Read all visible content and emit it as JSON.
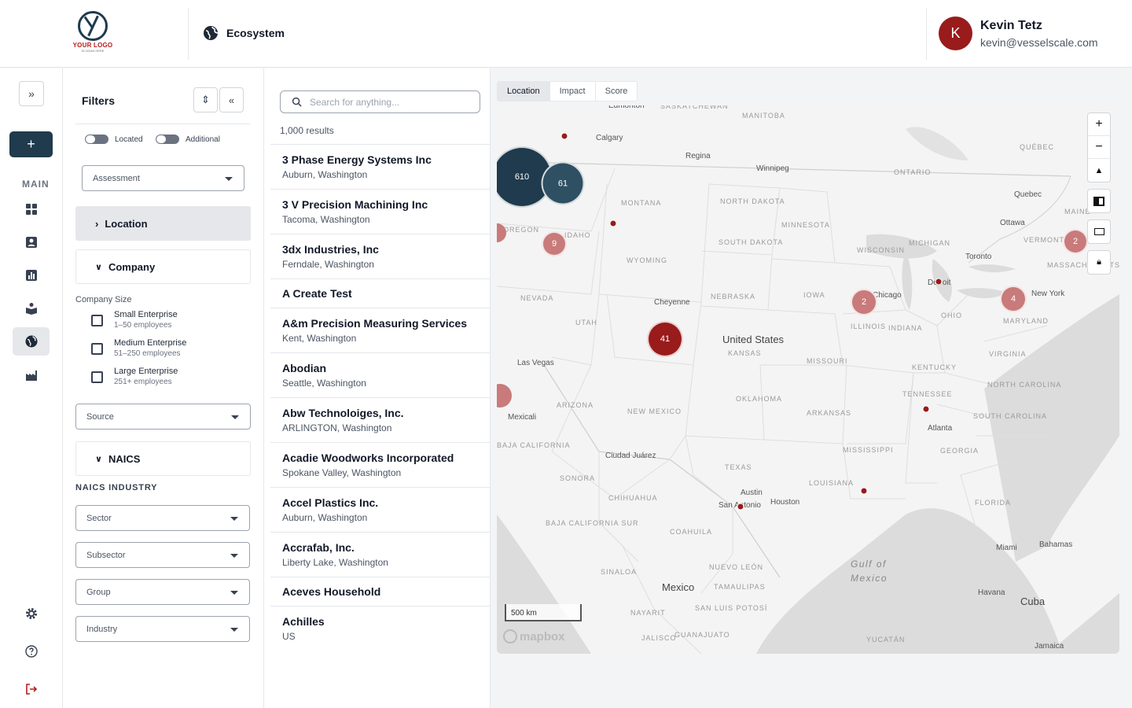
{
  "header": {
    "logo_text": "YOUR LOGO",
    "logo_sub": "SLOGAN HERE",
    "section_title": "Ecosystem",
    "user": {
      "initial": "K",
      "name": "Kevin Tetz",
      "email": "kevin@vesselscale.com"
    }
  },
  "rail": {
    "main_label": "MAIN"
  },
  "filters": {
    "title": "Filters",
    "toggles": [
      {
        "label": "Located"
      },
      {
        "label": "Additional"
      }
    ],
    "assessment": "Assessment",
    "location_section": "Location",
    "company_section": "Company",
    "company_size_label": "Company Size",
    "sizes": [
      {
        "name": "Small Enterprise",
        "range": "1–50 employees"
      },
      {
        "name": "Medium Enterprise",
        "range": "51–250 employees"
      },
      {
        "name": "Large Enterprise",
        "range": "251+ employees"
      }
    ],
    "source": "Source",
    "naics_section": "NAICS",
    "naics_industry_label": "NAICS INDUSTRY",
    "naics_selects": [
      "Sector",
      "Subsector",
      "Group",
      "Industry"
    ]
  },
  "results": {
    "search_placeholder": "Search for anything...",
    "count": "1,000 results",
    "items": [
      {
        "name": "3 Phase Energy Systems Inc",
        "location": "Auburn, Washington"
      },
      {
        "name": "3 V Precision Machining Inc",
        "location": "Tacoma, Washington"
      },
      {
        "name": "3dx Industries, Inc",
        "location": "Ferndale, Washington"
      },
      {
        "name": "A Create Test",
        "location": ""
      },
      {
        "name": "A&m Precision Measuring Services",
        "location": "Kent, Washington"
      },
      {
        "name": "Abodian",
        "location": "Seattle, Washington"
      },
      {
        "name": "Abw Technoloiges, Inc.",
        "location": "ARLINGTON, Washington"
      },
      {
        "name": "Acadie Woodworks Incorporated",
        "location": "Spokane Valley, Washington"
      },
      {
        "name": "Accel Plastics Inc.",
        "location": "Auburn, Washington"
      },
      {
        "name": "Accrafab, Inc.",
        "location": "Liberty Lake, Washington"
      },
      {
        "name": "Aceves Household",
        "location": ""
      },
      {
        "name": "Achilles",
        "location": "US"
      }
    ]
  },
  "map": {
    "tabs": [
      "Location",
      "Impact",
      "Score"
    ],
    "active_tab": "Location",
    "scale": "500 km",
    "attribution": "mapbox",
    "clusters": [
      {
        "count": "610",
        "color": "#1f3b4d"
      },
      {
        "count": "61",
        "color": "#2f4f63"
      },
      {
        "count": "41",
        "color": "#991b1b"
      },
      {
        "count": "9",
        "color": "#c97a7a"
      },
      {
        "count": "2",
        "color": "#c97a7a"
      },
      {
        "count": "4",
        "color": "#c97a7a"
      },
      {
        "count": "2",
        "color": "#c97a7a"
      }
    ],
    "labels": {
      "calgary": "Calgary",
      "regina": "Regina",
      "winnipeg": "Winnipeg",
      "quebec": "Quebec",
      "ottawa": "Ottawa",
      "toronto": "Toronto",
      "detroit": "Detroit",
      "chicago": "Chicago",
      "newyork": "New York",
      "cheyenne": "Cheyenne",
      "lasvegas": "Las Vegas",
      "mexicali": "Mexicali",
      "ciudad": "Ciudad Juárez",
      "austin": "Austin",
      "sanantonio": "San Antonio",
      "houston": "Houston",
      "atlanta": "Atlanta",
      "miami": "Miami",
      "havana": "Havana",
      "mexico": "Mexico",
      "cuba": "Cuba",
      "us": "United States",
      "gulf1": "Gulf of",
      "gulf2": "Mexico",
      "bahamas": "Bahamas",
      "jamaica": "Jamaica",
      "montana": "MONTANA",
      "ndakota": "NORTH DAKOTA",
      "sdakota": "SOUTH DAKOTA",
      "minnesota": "MINNESOTA",
      "wisconsin": "WISCONSIN",
      "michigan": "MICHIGAN",
      "oregon": "OREGON",
      "idaho": "IDAHO",
      "wyoming": "WYOMING",
      "nevada": "NEVADA",
      "utah": "UTAH",
      "nebraska": "NEBRASKA",
      "iowa": "IOWA",
      "illinois": "ILLINOIS",
      "indiana": "INDIANA",
      "ohio": "OHIO",
      "kansas": "KANSAS",
      "missouri": "MISSOURI",
      "kentucky": "KENTUCKY",
      "virginia": "VIRGINIA",
      "ncarolina": "NORTH CAROLINA",
      "tennessee": "TENNESSEE",
      "scarolina": "SOUTH CAROLINA",
      "arizona": "ARIZONA",
      "newmexico": "NEW MEXICO",
      "oklahoma": "OKLAHOMA",
      "arkansas": "ARKANSAS",
      "mississippi": "MISSISSIPPI",
      "georgia": "GEORGIA",
      "texas": "TEXAS",
      "louisiana": "LOUISIANA",
      "florida": "FLORIDA",
      "sonora": "SONORA",
      "chihuahua": "CHIHUAHUA",
      "coahuila": "COAHUILA",
      "nuevoleon": "NUEVO LEÓN",
      "tamaulipas": "TAMAULIPAS",
      "sinaloa": "SINALOA",
      "bajacal": "BAJA CALIFORNIA",
      "bajasur": "BAJA CALIFORNIA SUR",
      "slp": "SAN LUIS POTOSÍ",
      "nayarit": "NAYARIT",
      "jalisco": "JALISCO",
      "guanajuato": "GUANAJUATO",
      "yucatan": "YUCATÁN",
      "manitoba": "MANITOBA",
      "saskatchewan": "SASKATCHEWAN",
      "ontario": "ONTARIO",
      "quebecprov": "QUÉBEC",
      "vermont": "VERMONT",
      "maine": "MAINE",
      "massachusetts": "MASSACHUSETTS",
      "maryland": "MARYLAND",
      "edmonton": "Edmonton"
    }
  }
}
